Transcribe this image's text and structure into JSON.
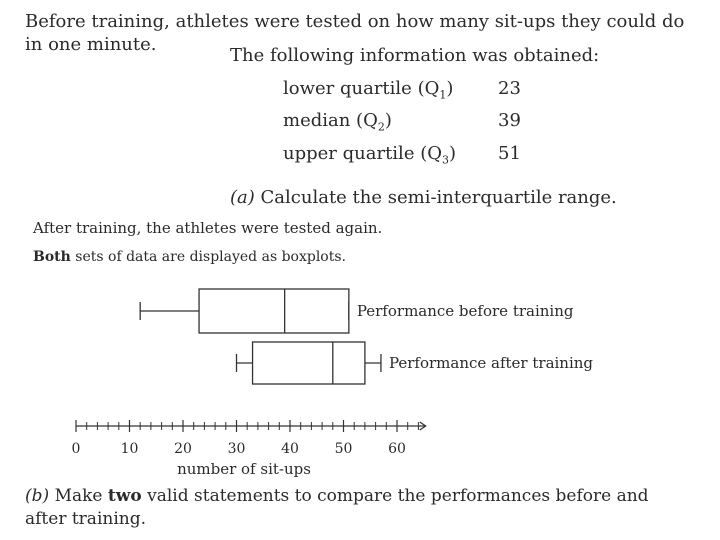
{
  "question": {
    "intro": "Before training, athletes were tested on how many sit-ups they could do in one minute.",
    "info_heading": "The following information was obtained:",
    "quartiles": [
      {
        "label": "lower quartile",
        "symbol": "Q",
        "sub": "1",
        "value": "23"
      },
      {
        "label": "median",
        "symbol": "Q",
        "sub": "2",
        "value": "39"
      },
      {
        "label": "upper quartile",
        "symbol": "Q",
        "sub": "3",
        "value": "51"
      }
    ],
    "part_a": {
      "marker": "(a)",
      "text": "Calculate the semi-interquartile range."
    },
    "after_text": "After training, the athletes were tested again.",
    "both_bold": "Both",
    "both_rest": "sets of data are displayed as boxplots.",
    "part_b": {
      "marker": "(b)",
      "pre": "Make",
      "bold": "two",
      "post": "valid statements to compare the performances before and after training."
    }
  },
  "chart_data": {
    "type": "boxplot",
    "xlabel": "number of sit-ups",
    "xlim": [
      0,
      65
    ],
    "ticks": [
      0,
      10,
      20,
      30,
      40,
      50,
      60
    ],
    "minor_step": 2,
    "series": [
      {
        "name": "Performance before training",
        "min": 12,
        "q1": 23,
        "median": 39,
        "q3": 51,
        "max": 51
      },
      {
        "name": "Performance after training",
        "min": 30,
        "q1": 33,
        "median": 48,
        "q3": 54,
        "max": 57
      }
    ]
  }
}
